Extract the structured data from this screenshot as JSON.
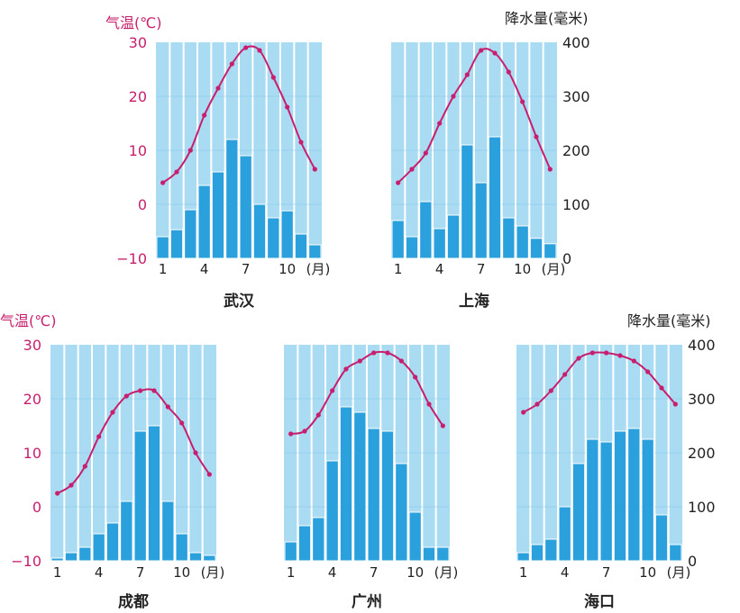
{
  "chart_data": {
    "type": "climate-charts",
    "temp_axis": {
      "label": "气温(℃)",
      "ticks": [
        "30",
        "20",
        "10",
        "0",
        "−10"
      ],
      "range": [
        -10,
        30
      ]
    },
    "precip_axis": {
      "label": "降水量(毫米)",
      "ticks": [
        "400",
        "300",
        "200",
        "100",
        "0"
      ],
      "range": [
        0,
        400
      ]
    },
    "month_ticks": [
      "1",
      "4",
      "7",
      "10",
      "(月)"
    ],
    "months": [
      1,
      2,
      3,
      4,
      5,
      6,
      7,
      8,
      9,
      10,
      11,
      12
    ],
    "colors": {
      "temperature": "#c81e6e",
      "precipitation": "#2aa0dc",
      "plot_background": "#a9dbf2",
      "temp_axis_text": "#c81e6e",
      "precip_axis_text": "#222222"
    },
    "charts": [
      {
        "name": "武汉",
        "temperature": [
          4,
          6,
          10,
          16.5,
          21.5,
          26,
          29,
          28.5,
          23.5,
          18,
          11.5,
          6.5
        ],
        "precipitation": [
          40,
          53,
          90,
          135,
          160,
          220,
          190,
          100,
          75,
          88,
          45,
          25
        ]
      },
      {
        "name": "上海",
        "temperature": [
          4,
          6.5,
          9.5,
          15,
          20,
          24,
          28.5,
          28,
          24.5,
          19,
          12.5,
          6.5
        ],
        "precipitation": [
          70,
          40,
          105,
          55,
          80,
          210,
          140,
          225,
          75,
          60,
          37,
          27
        ]
      },
      {
        "name": "成都",
        "temperature": [
          2.5,
          4,
          7.5,
          13,
          17.5,
          20.5,
          21.5,
          21.5,
          18.5,
          15.5,
          10,
          6
        ],
        "precipitation": [
          5,
          15,
          25,
          50,
          70,
          110,
          240,
          250,
          110,
          50,
          15,
          10
        ]
      },
      {
        "name": "广州",
        "temperature": [
          13.5,
          14,
          17,
          21.5,
          25.5,
          27,
          28.5,
          28.5,
          27,
          24,
          19,
          15
        ],
        "precipitation": [
          35,
          65,
          80,
          185,
          285,
          275,
          245,
          240,
          180,
          90,
          25,
          25
        ]
      },
      {
        "name": "海口",
        "temperature": [
          17.5,
          19,
          21.5,
          24.5,
          27.5,
          28.5,
          28.5,
          28,
          27,
          25,
          22,
          19
        ],
        "precipitation": [
          15,
          30,
          40,
          100,
          180,
          225,
          220,
          240,
          245,
          225,
          85,
          30
        ]
      }
    ]
  }
}
